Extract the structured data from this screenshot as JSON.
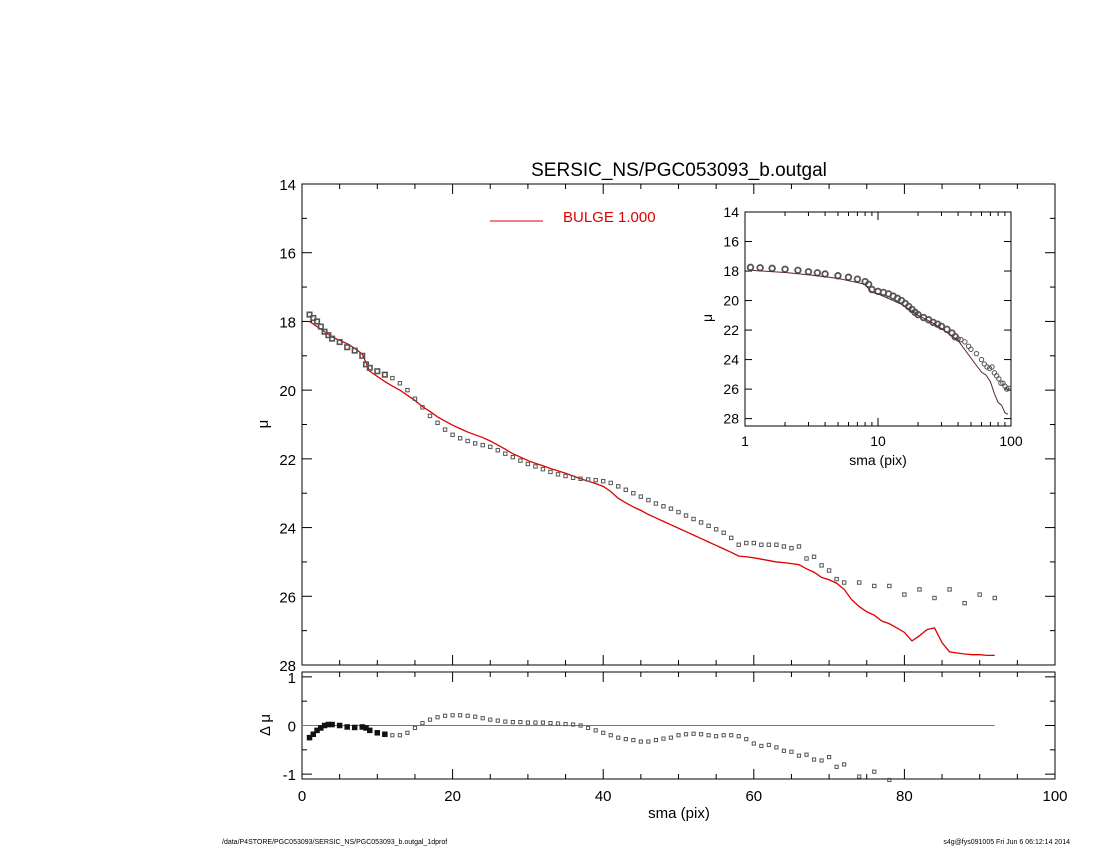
{
  "figure": {
    "title": "SERSIC_NS/PGC053093_b.outgal",
    "footer_left": "/data/P4STORE/PGC053093/SERSIC_NS/PGC053093_b.outgal_1dprof",
    "footer_right": "s4g@fys091005  Fri Jun  6 06:12:14 2014"
  },
  "chart_data": [
    {
      "id": "main",
      "type": "scatter",
      "title": "SERSIC_NS/PGC053093_b.outgal",
      "xlabel": "",
      "ylabel": "μ",
      "xlim": [
        0,
        100
      ],
      "ylim": [
        28,
        14
      ],
      "xticks": [
        0,
        20,
        40,
        60,
        80,
        100
      ],
      "yticks": [
        14,
        16,
        18,
        20,
        22,
        24,
        26,
        28
      ],
      "legend": {
        "label": "BULGE  1.000",
        "color": "#dd0000",
        "position": "top-center"
      },
      "series": [
        {
          "role": "data",
          "color": "#555555",
          "marker": "square",
          "x": [
            1,
            1.5,
            2,
            2.5,
            3,
            3.5,
            4,
            5,
            6,
            7,
            8,
            8.5,
            9,
            10,
            11,
            12,
            13,
            14,
            15,
            16,
            17,
            18,
            19,
            20,
            21,
            22,
            23,
            24,
            25,
            26,
            27,
            28,
            29,
            30,
            31,
            32,
            33,
            34,
            35,
            36,
            37,
            38,
            39,
            40,
            41,
            42,
            43,
            44,
            45,
            46,
            47,
            48,
            49,
            50,
            51,
            52,
            53,
            54,
            55,
            56,
            57,
            58,
            59,
            60,
            61,
            62,
            63,
            64,
            65,
            66,
            67,
            68,
            69,
            70,
            71,
            72,
            74,
            76,
            78,
            80,
            82,
            84,
            86,
            88,
            90,
            92
          ],
          "y": [
            17.8,
            17.9,
            18.0,
            18.15,
            18.3,
            18.4,
            18.5,
            18.6,
            18.75,
            18.85,
            19.0,
            19.25,
            19.35,
            19.45,
            19.55,
            19.65,
            19.8,
            20.0,
            20.25,
            20.5,
            20.75,
            20.95,
            21.15,
            21.3,
            21.4,
            21.48,
            21.55,
            21.6,
            21.65,
            21.75,
            21.85,
            21.95,
            22.05,
            22.15,
            22.22,
            22.3,
            22.38,
            22.45,
            22.5,
            22.55,
            22.58,
            22.6,
            22.62,
            22.65,
            22.7,
            22.8,
            22.9,
            23.0,
            23.1,
            23.2,
            23.3,
            23.38,
            23.45,
            23.55,
            23.65,
            23.75,
            23.85,
            23.95,
            24.05,
            24.15,
            24.3,
            24.5,
            24.45,
            24.45,
            24.5,
            24.5,
            24.5,
            24.55,
            24.6,
            24.55,
            24.9,
            24.85,
            25.1,
            25.25,
            25.5,
            25.6,
            25.6,
            25.7,
            25.7,
            25.95,
            25.8,
            26.05,
            25.8,
            26.2,
            25.95,
            26.05
          ]
        },
        {
          "role": "model",
          "name": "BULGE  1.000",
          "color": "#dd0000",
          "x": [
            1,
            2,
            3,
            4,
            5,
            6,
            7,
            8,
            8.5,
            9,
            10,
            11,
            12,
            13,
            14,
            15,
            16,
            17,
            18,
            19,
            20,
            21,
            22,
            23,
            24,
            25,
            26,
            27,
            28,
            29,
            30,
            31,
            32,
            33,
            34,
            35,
            36,
            37,
            38,
            39,
            40,
            41,
            42,
            43,
            44,
            45,
            46,
            47,
            48,
            49,
            50,
            51,
            52,
            53,
            54,
            55,
            56,
            57,
            58,
            59,
            60,
            61,
            62,
            63,
            64,
            65,
            66,
            67,
            68,
            69,
            70,
            71,
            72,
            73,
            74,
            75,
            76,
            77,
            78,
            79,
            80,
            81,
            82,
            83,
            84,
            85,
            86,
            87,
            88,
            89,
            90,
            91,
            92
          ],
          "y": [
            18.0,
            18.15,
            18.3,
            18.45,
            18.55,
            18.65,
            18.78,
            18.95,
            19.2,
            19.45,
            19.6,
            19.75,
            19.88,
            20.0,
            20.15,
            20.3,
            20.48,
            20.62,
            20.78,
            20.9,
            21.02,
            21.12,
            21.22,
            21.3,
            21.38,
            21.48,
            21.6,
            21.72,
            21.85,
            21.95,
            22.05,
            22.13,
            22.2,
            22.28,
            22.35,
            22.42,
            22.5,
            22.58,
            22.65,
            22.72,
            22.8,
            22.95,
            23.15,
            23.28,
            23.4,
            23.5,
            23.62,
            23.72,
            23.82,
            23.92,
            24.02,
            24.12,
            24.22,
            24.32,
            24.42,
            24.52,
            24.62,
            24.72,
            24.83,
            24.85,
            24.88,
            24.92,
            24.96,
            25.0,
            25.02,
            25.05,
            25.08,
            25.2,
            25.3,
            25.45,
            25.52,
            25.62,
            25.8,
            26.1,
            26.3,
            26.45,
            26.55,
            26.72,
            26.8,
            26.92,
            27.05,
            27.3,
            27.15,
            26.97,
            26.92,
            27.35,
            27.62,
            27.65,
            27.68,
            27.7,
            27.7,
            27.72,
            27.72
          ]
        }
      ]
    },
    {
      "id": "residual",
      "type": "scatter",
      "xlabel": "sma (pix)",
      "ylabel": "Δ μ",
      "xlim": [
        0,
        100
      ],
      "ylim": [
        -1.1,
        1.1
      ],
      "xticks": [
        0,
        20,
        40,
        60,
        80,
        100
      ],
      "yticks": [
        1,
        0,
        -1
      ],
      "series": [
        {
          "role": "residual",
          "color": "#555555",
          "marker": "square",
          "x": [
            1,
            1.5,
            2,
            2.5,
            3,
            3.5,
            4,
            5,
            6,
            7,
            8,
            8.5,
            9,
            10,
            11,
            12,
            13,
            14,
            15,
            16,
            17,
            18,
            19,
            20,
            21,
            22,
            23,
            24,
            25,
            26,
            27,
            28,
            29,
            30,
            31,
            32,
            33,
            34,
            35,
            36,
            37,
            38,
            39,
            40,
            41,
            42,
            43,
            44,
            45,
            46,
            47,
            48,
            49,
            50,
            51,
            52,
            53,
            54,
            55,
            56,
            57,
            58,
            59,
            60,
            61,
            62,
            63,
            64,
            65,
            66,
            67,
            68,
            69,
            70,
            71,
            72,
            74,
            76,
            78
          ],
          "y": [
            -0.25,
            -0.18,
            -0.1,
            -0.05,
            0.0,
            0.02,
            0.02,
            0.0,
            -0.03,
            -0.04,
            -0.03,
            -0.05,
            -0.1,
            -0.15,
            -0.18,
            -0.2,
            -0.2,
            -0.15,
            -0.05,
            0.05,
            0.12,
            0.17,
            0.2,
            0.21,
            0.21,
            0.2,
            0.18,
            0.15,
            0.12,
            0.1,
            0.08,
            0.07,
            0.07,
            0.06,
            0.06,
            0.06,
            0.05,
            0.04,
            0.03,
            0.02,
            0.0,
            -0.05,
            -0.1,
            -0.15,
            -0.2,
            -0.25,
            -0.28,
            -0.3,
            -0.33,
            -0.33,
            -0.3,
            -0.27,
            -0.25,
            -0.2,
            -0.18,
            -0.17,
            -0.18,
            -0.2,
            -0.22,
            -0.2,
            -0.2,
            -0.22,
            -0.28,
            -0.37,
            -0.42,
            -0.4,
            -0.45,
            -0.52,
            -0.54,
            -0.62,
            -0.6,
            -0.7,
            -0.72,
            -0.65,
            -0.85,
            -0.8,
            -1.05,
            -0.95,
            -1.12
          ]
        },
        {
          "role": "zero-line",
          "color": "#777777",
          "x": [
            0,
            92
          ],
          "y": [
            0,
            0
          ]
        }
      ]
    },
    {
      "id": "inset",
      "type": "scatter",
      "xlabel": "sma (pix)",
      "ylabel": "μ",
      "xscale": "log",
      "xlim": [
        1,
        100
      ],
      "ylim": [
        28.5,
        14
      ],
      "xticks": [
        1,
        10,
        100
      ],
      "yticks": [
        14,
        16,
        18,
        20,
        22,
        24,
        26,
        28
      ],
      "series": [
        {
          "role": "data",
          "color": "#555555",
          "marker": "circle",
          "x": [
            1.1,
            1.3,
            1.6,
            2,
            2.5,
            3,
            3.5,
            4,
            5,
            6,
            7,
            8,
            8.5,
            9,
            10,
            11,
            12,
            13,
            14,
            15,
            16,
            17,
            18,
            19,
            20,
            22,
            24,
            26,
            28,
            30,
            33,
            36,
            38,
            40,
            42,
            45,
            48,
            50,
            55,
            60,
            63,
            66,
            69,
            72,
            75,
            78,
            81,
            84,
            87,
            90,
            93,
            96
          ],
          "y": [
            17.75,
            17.78,
            17.82,
            17.88,
            17.95,
            18.05,
            18.12,
            18.2,
            18.32,
            18.42,
            18.55,
            18.72,
            18.9,
            19.25,
            19.38,
            19.45,
            19.55,
            19.7,
            19.85,
            20.0,
            20.2,
            20.4,
            20.6,
            20.8,
            20.95,
            21.15,
            21.3,
            21.48,
            21.6,
            21.75,
            21.95,
            22.2,
            22.45,
            22.6,
            22.65,
            22.8,
            23.1,
            23.3,
            23.6,
            24.0,
            24.3,
            24.5,
            24.6,
            24.5,
            24.9,
            25.1,
            25.3,
            25.6,
            25.6,
            25.8,
            26.0,
            25.95
          ]
        },
        {
          "role": "model",
          "color": "#5a2a2a",
          "x": [
            1.1,
            2,
            3,
            5,
            8,
            8.5,
            9,
            10,
            15,
            20,
            25,
            30,
            40,
            50,
            60,
            65,
            70,
            75,
            80,
            85,
            90,
            95
          ],
          "y": [
            17.95,
            18.1,
            18.25,
            18.5,
            18.9,
            19.2,
            19.45,
            19.55,
            20.25,
            21.0,
            21.45,
            21.9,
            22.7,
            23.9,
            24.85,
            25.05,
            25.5,
            26.3,
            26.9,
            27.1,
            27.6,
            27.7
          ]
        }
      ]
    }
  ]
}
